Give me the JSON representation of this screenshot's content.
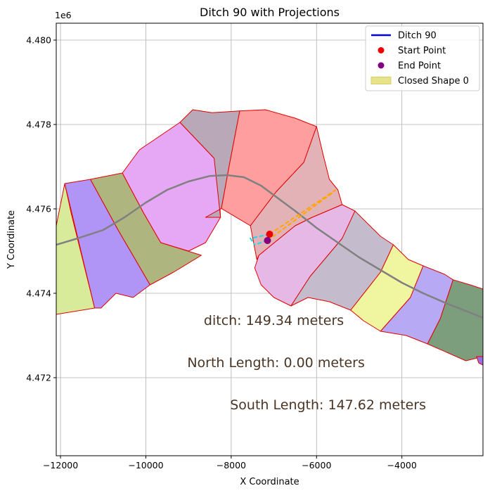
{
  "chart_data": {
    "type": "scatter",
    "title": "Ditch 90 with Projections",
    "xlabel": "X Coordinate",
    "ylabel": "Y Coordinate",
    "y_offset_label": "1e6",
    "xlim": [
      -12100,
      -2100
    ],
    "ylim": [
      4470150,
      4480400
    ],
    "x_ticks": [
      {
        "value": -12000,
        "label": "−12000"
      },
      {
        "value": -10000,
        "label": "−10000"
      },
      {
        "value": -8000,
        "label": "−8000"
      },
      {
        "value": -6000,
        "label": "−6000"
      },
      {
        "value": -4000,
        "label": "−4000"
      }
    ],
    "y_ticks": [
      {
        "value": 4472000,
        "label": "4.472"
      },
      {
        "value": 4474000,
        "label": "4.474"
      },
      {
        "value": 4476000,
        "label": "4.476"
      },
      {
        "value": 4478000,
        "label": "4.478"
      },
      {
        "value": 4480000,
        "label": "4.480"
      }
    ],
    "grid": true,
    "legend_position": "top-right",
    "legend": [
      {
        "label": "Ditch 90",
        "kind": "line",
        "color": "#0000ee"
      },
      {
        "label": "Start Point",
        "kind": "marker",
        "color": "#ee0000"
      },
      {
        "label": "End Point",
        "kind": "marker",
        "color": "#800080"
      },
      {
        "label": "Closed Shape 0",
        "kind": "patch",
        "color": "#e6e38a"
      }
    ],
    "annotations": [
      {
        "text": "ditch: 149.34 meters",
        "x": -7000,
        "y": 4473250
      },
      {
        "text": "North Length: 0.00 meters",
        "x": -6950,
        "y": 4472250
      },
      {
        "text": "South Length: 147.62 meters",
        "x": -5730,
        "y": 4471250
      }
    ],
    "closed_shape_polygons": [
      {
        "color": "#d8eb9a",
        "points": [
          [
            -12100,
            4475600
          ],
          [
            -11900,
            4476600
          ],
          [
            -11750,
            4475900
          ],
          [
            -11200,
            4473650
          ],
          [
            -12100,
            4473500
          ]
        ]
      },
      {
        "color": "#b195f6",
        "points": [
          [
            -11900,
            4476600
          ],
          [
            -11300,
            4476700
          ],
          [
            -10650,
            4475500
          ],
          [
            -9900,
            4474200
          ],
          [
            -10300,
            4473900
          ],
          [
            -10700,
            4474000
          ],
          [
            -11050,
            4473650
          ],
          [
            -11200,
            4473650
          ]
        ]
      },
      {
        "color": "#afb57f",
        "points": [
          [
            -11300,
            4476700
          ],
          [
            -10550,
            4476850
          ],
          [
            -10050,
            4475900
          ],
          [
            -9650,
            4475200
          ],
          [
            -8700,
            4474900
          ],
          [
            -9350,
            4474500
          ],
          [
            -9900,
            4474200
          ],
          [
            -10650,
            4475500
          ]
        ]
      },
      {
        "color": "#e6a8f5",
        "points": [
          [
            -10550,
            4476850
          ],
          [
            -10150,
            4477400
          ],
          [
            -9200,
            4478050
          ],
          [
            -8400,
            4477200
          ],
          [
            -8300,
            4476700
          ],
          [
            -8250,
            4475800
          ],
          [
            -8600,
            4475200
          ],
          [
            -9000,
            4475000
          ],
          [
            -9650,
            4475200
          ],
          [
            -10050,
            4475900
          ]
        ]
      },
      {
        "color": "#b8a8b8",
        "points": [
          [
            -9200,
            4478050
          ],
          [
            -8900,
            4478350
          ],
          [
            -8450,
            4478280
          ],
          [
            -7800,
            4478320
          ],
          [
            -8050,
            4477000
          ],
          [
            -8230,
            4476010
          ],
          [
            -8600,
            4475800
          ],
          [
            -8500,
            4475800
          ],
          [
            -8250,
            4475800
          ],
          [
            -8400,
            4477200
          ]
        ]
      },
      {
        "color": "#fe9e9e",
        "points": [
          [
            -7800,
            4478320
          ],
          [
            -7200,
            4478350
          ],
          [
            -6500,
            4478150
          ],
          [
            -6000,
            4477950
          ],
          [
            -6300,
            4477100
          ],
          [
            -6950,
            4476400
          ],
          [
            -7550,
            4475600
          ],
          [
            -8230,
            4476010
          ],
          [
            -8050,
            4477000
          ]
        ]
      },
      {
        "color": "#e3b2b6",
        "points": [
          [
            -6000,
            4477950
          ],
          [
            -5850,
            4477300
          ],
          [
            -5700,
            4476700
          ],
          [
            -5500,
            4476450
          ],
          [
            -5400,
            4476100
          ],
          [
            -6100,
            4475800
          ],
          [
            -6500,
            4475600
          ],
          [
            -7350,
            4474900
          ],
          [
            -7400,
            4474800
          ],
          [
            -7550,
            4475600
          ],
          [
            -6950,
            4476400
          ],
          [
            -6300,
            4477100
          ]
        ]
      },
      {
        "color": "#e6b8e6",
        "points": [
          [
            -7350,
            4474900
          ],
          [
            -6500,
            4475600
          ],
          [
            -6100,
            4475800
          ],
          [
            -5400,
            4476100
          ],
          [
            -5100,
            4475950
          ],
          [
            -4900,
            4475700
          ],
          [
            -5400,
            4475300
          ],
          [
            -6150,
            4474400
          ],
          [
            -6600,
            4473700
          ],
          [
            -7000,
            4473900
          ],
          [
            -7300,
            4474200
          ],
          [
            -7450,
            4474600
          ]
        ]
      },
      {
        "color": "#c4bccd",
        "points": [
          [
            -5100,
            4475950
          ],
          [
            -4500,
            4475350
          ],
          [
            -4200,
            4475150
          ],
          [
            -4500,
            4474500
          ],
          [
            -5200,
            4473600
          ],
          [
            -5700,
            4473800
          ],
          [
            -6200,
            4473900
          ],
          [
            -6600,
            4473700
          ],
          [
            -6150,
            4474400
          ],
          [
            -5400,
            4475300
          ]
        ]
      },
      {
        "color": "#f0f59f",
        "points": [
          [
            -4200,
            4475150
          ],
          [
            -3850,
            4474800
          ],
          [
            -3500,
            4474650
          ],
          [
            -3800,
            4473900
          ],
          [
            -4500,
            4473100
          ],
          [
            -4900,
            4473350
          ],
          [
            -5200,
            4473600
          ],
          [
            -4500,
            4474500
          ]
        ]
      },
      {
        "color": "#b8a9f5",
        "points": [
          [
            -3500,
            4474650
          ],
          [
            -3000,
            4474450
          ],
          [
            -2800,
            4474320
          ],
          [
            -3100,
            4473400
          ],
          [
            -3400,
            4472800
          ],
          [
            -3900,
            4473000
          ],
          [
            -4500,
            4473100
          ],
          [
            -3800,
            4473900
          ]
        ]
      },
      {
        "color": "#7d9e7c",
        "points": [
          [
            -2800,
            4474320
          ],
          [
            -2400,
            4474200
          ],
          [
            -2100,
            4474100
          ],
          [
            -2100,
            4472500
          ],
          [
            -2500,
            4472400
          ],
          [
            -3400,
            4472800
          ],
          [
            -3100,
            4473400
          ]
        ]
      },
      {
        "color": "#9b70e6",
        "points": [
          [
            -2250,
            4472500
          ],
          [
            -2100,
            4472500
          ],
          [
            -2100,
            4472300
          ],
          [
            -2200,
            4472350
          ]
        ]
      }
    ],
    "centerline": {
      "color": "#808080",
      "x": [
        -12100,
        -11600,
        -11000,
        -10500,
        -10000,
        -9500,
        -9000,
        -8500,
        -8100,
        -7700,
        -7300,
        -6900,
        -6500,
        -6000,
        -5500,
        -5000,
        -4500,
        -4000,
        -3500,
        -3000,
        -2500,
        -2100
      ],
      "y": [
        4475150,
        4475300,
        4475500,
        4475800,
        4476150,
        4476450,
        4476650,
        4476780,
        4476800,
        4476750,
        4476550,
        4476250,
        4475950,
        4475550,
        4475200,
        4474850,
        4474550,
        4474250,
        4474000,
        4473780,
        4473580,
        4473420
      ]
    },
    "ditch_line": {
      "color": "#0000ee",
      "x": [
        -7100,
        -7150
      ],
      "y": [
        4475400,
        4475250
      ]
    },
    "projection_orange": [
      {
        "x": [
          -7100,
          -5550
        ],
        "y": [
          4475400,
          4476450
        ]
      },
      {
        "x": [
          -7150,
          -5600
        ],
        "y": [
          4475250,
          4476400
        ]
      }
    ],
    "projection_cyan": [
      {
        "x": [
          -7100,
          -7550,
          -7450
        ],
        "y": [
          4475400,
          4475300,
          4475150
        ]
      },
      {
        "x": [
          -7150,
          -7450
        ],
        "y": [
          4475250,
          4475150
        ]
      }
    ],
    "start_point": {
      "x": -7100,
      "y": 4475400,
      "color": "#ee0000"
    },
    "end_point": {
      "x": -7150,
      "y": 4475250,
      "color": "#800080"
    }
  }
}
